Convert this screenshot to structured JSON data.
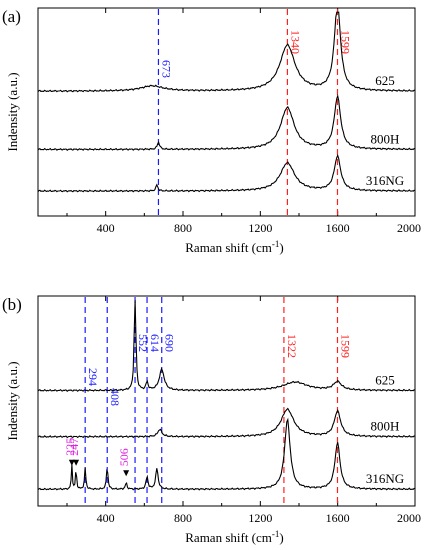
{
  "chart_data": [
    {
      "panel": "(a)",
      "type": "line",
      "xlabel": "Raman shift (cm",
      "xlabel_sup": "-1",
      "xlabel_close": ")",
      "ylabel": "Indensity (a.u.)",
      "xlim": [
        50,
        2000
      ],
      "xticks": [
        400,
        800,
        1200,
        1600,
        2000
      ],
      "xtick_labels": [
        "400",
        "800",
        "1200",
        "1600",
        "2000"
      ],
      "vlines": [
        {
          "x": 673,
          "label": "673",
          "color": "#1a1aff"
        },
        {
          "x": 1340,
          "label": "1340",
          "color": "#ff2020"
        },
        {
          "x": 1599,
          "label": "1599",
          "color": "#ff2020"
        }
      ],
      "series": [
        {
          "name": "625",
          "offset": 0.6,
          "peaks": [
            {
              "c": 640,
              "h": 0.025,
              "w": 140
            },
            {
              "c": 1340,
              "h": 0.22,
              "w": 95
            },
            {
              "c": 1599,
              "h": 0.42,
              "w": 38
            }
          ]
        },
        {
          "name": "800H",
          "offset": 0.32,
          "peaks": [
            {
              "c": 673,
              "h": 0.035,
              "w": 14
            },
            {
              "c": 1340,
              "h": 0.2,
              "w": 85
            },
            {
              "c": 1599,
              "h": 0.25,
              "w": 40
            }
          ]
        },
        {
          "name": "316NG",
          "offset": 0.12,
          "peaks": [
            {
              "c": 665,
              "h": 0.03,
              "w": 12
            },
            {
              "c": 1340,
              "h": 0.135,
              "w": 90
            },
            {
              "c": 1599,
              "h": 0.165,
              "w": 40
            }
          ]
        }
      ]
    },
    {
      "panel": "(b)",
      "type": "line",
      "xlabel": "Raman shift (cm",
      "xlabel_sup": "-1",
      "xlabel_close": ")",
      "ylabel": "Indensity (a.u.)",
      "xlim": [
        50,
        2000
      ],
      "xticks": [
        400,
        800,
        1200,
        1600,
        2000
      ],
      "xtick_labels": [
        "400",
        "800",
        "1200",
        "1600",
        "2000"
      ],
      "vlines": [
        {
          "x": 294,
          "label": "294",
          "color": "#1a1aff"
        },
        {
          "x": 408,
          "label": "408",
          "color": "#1a1aff"
        },
        {
          "x": 552,
          "label": "552",
          "color": "#1a1aff"
        },
        {
          "x": 614,
          "label": "614",
          "color": "#1a1aff"
        },
        {
          "x": 690,
          "label": "690",
          "color": "#1a1aff"
        },
        {
          "x": 1322,
          "label": "1322",
          "color": "#ff2020"
        },
        {
          "x": 1599,
          "label": "1599",
          "color": "#ff2020"
        }
      ],
      "annotations": [
        {
          "x": 225,
          "label": "225",
          "color": "#e020e0"
        },
        {
          "x": 247,
          "label": "247",
          "color": "#e020e0"
        },
        {
          "x": 506,
          "label": "506",
          "color": "#e020e0"
        }
      ],
      "series": [
        {
          "name": "625",
          "offset": 0.55,
          "peaks": [
            {
              "c": 552,
              "h": 0.55,
              "w": 9
            },
            {
              "c": 690,
              "h": 0.1,
              "w": 30
            },
            {
              "c": 614,
              "h": 0.04,
              "w": 12
            },
            {
              "c": 1380,
              "h": 0.04,
              "w": 150
            },
            {
              "c": 1599,
              "h": 0.04,
              "w": 50
            }
          ]
        },
        {
          "name": "800H",
          "offset": 0.33,
          "peaks": [
            {
              "c": 680,
              "h": 0.035,
              "w": 25
            },
            {
              "c": 1340,
              "h": 0.13,
              "w": 80
            },
            {
              "c": 1599,
              "h": 0.12,
              "w": 40
            }
          ]
        },
        {
          "name": "316NG",
          "offset": 0.08,
          "peaks": [
            {
              "c": 225,
              "h": 0.12,
              "w": 6
            },
            {
              "c": 247,
              "h": 0.11,
              "w": 6
            },
            {
              "c": 294,
              "h": 0.1,
              "w": 8
            },
            {
              "c": 408,
              "h": 0.11,
              "w": 9
            },
            {
              "c": 506,
              "h": 0.03,
              "w": 10
            },
            {
              "c": 614,
              "h": 0.06,
              "w": 12
            },
            {
              "c": 665,
              "h": 0.1,
              "w": 15
            },
            {
              "c": 1340,
              "h": 0.33,
              "w": 35
            },
            {
              "c": 1599,
              "h": 0.22,
              "w": 32
            }
          ]
        }
      ]
    }
  ]
}
